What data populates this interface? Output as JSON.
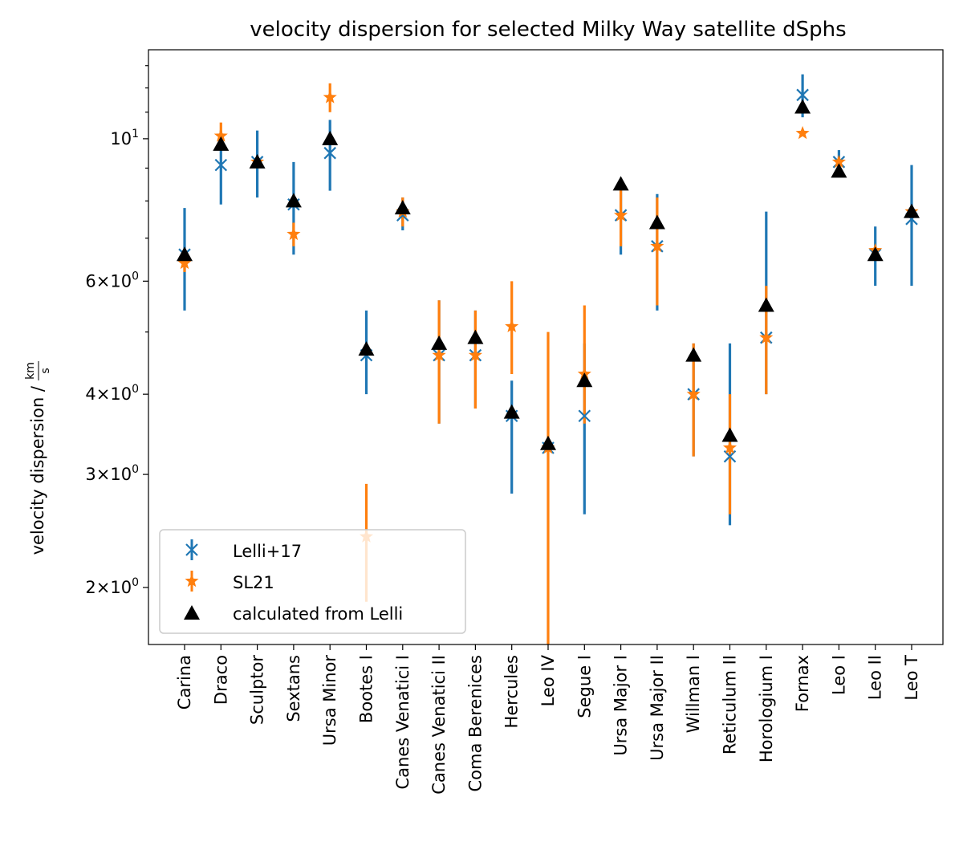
{
  "chart_data": {
    "type": "scatter",
    "title": "velocity dispersion for selected Milky Way satellite dSphs",
    "xlabel": "",
    "ylabel": "velocity dispersion / km/s",
    "ylabel_prefix": "velocity dispersion /",
    "ylabel_unit_num": "km",
    "ylabel_unit_den": "s",
    "yscale": "log",
    "ylim": [
      1.63,
      13.76
    ],
    "yticks": [
      {
        "value": 2,
        "mantissa": "2",
        "base": "10",
        "exp": "0"
      },
      {
        "value": 3,
        "mantissa": "3",
        "base": "10",
        "exp": "0"
      },
      {
        "value": 4,
        "mantissa": "4",
        "base": "10",
        "exp": "0"
      },
      {
        "value": 6,
        "mantissa": "6",
        "base": "10",
        "exp": "0"
      },
      {
        "value": 10,
        "mantissa": "",
        "base": "10",
        "exp": "1"
      }
    ],
    "categories": [
      "Carina",
      "Draco",
      "Sculptor",
      "Sextans",
      "Ursa Minor",
      "Bootes I",
      "Canes Venatici I",
      "Canes Venatici II",
      "Coma Berenices",
      "Hercules",
      "Leo IV",
      "Segue I",
      "Ursa Major I",
      "Ursa Major II",
      "Willman I",
      "Reticulum II",
      "Horologium I",
      "Fornax",
      "Leo I",
      "Leo II",
      "Leo T"
    ],
    "series": [
      {
        "name": "Lelli+17",
        "color": "#1f77b4",
        "marker": "x",
        "values": [
          6.6,
          9.1,
          9.2,
          7.9,
          9.5,
          4.6,
          7.6,
          4.6,
          4.6,
          3.7,
          3.3,
          3.7,
          7.6,
          6.8,
          4.0,
          3.2,
          4.9,
          11.7,
          9.2,
          6.6,
          7.5
        ],
        "err_low": [
          1.2,
          1.2,
          1.1,
          1.3,
          1.2,
          0.6,
          0.4,
          1.0,
          0.8,
          0.9,
          0.0,
          1.1,
          1.0,
          1.4,
          0.8,
          0.7,
          0.9,
          0.9,
          0.4,
          0.7,
          1.6
        ],
        "err_high": [
          1.2,
          1.2,
          1.1,
          1.3,
          1.2,
          0.8,
          0.5,
          1.0,
          0.8,
          0.5,
          0.0,
          1.1,
          1.0,
          1.4,
          0.8,
          1.6,
          2.8,
          0.9,
          0.4,
          0.7,
          1.6
        ]
      },
      {
        "name": "SL21",
        "color": "#ff7f0e",
        "marker": "*",
        "values": [
          6.4,
          10.1,
          9.2,
          7.1,
          11.6,
          2.4,
          7.7,
          4.6,
          4.6,
          5.1,
          3.3,
          4.3,
          7.6,
          6.8,
          4.0,
          3.3,
          4.9,
          10.2,
          9.2,
          6.7,
          7.7
        ],
        "err_low": [
          0.2,
          0.3,
          0.2,
          0.3,
          0.6,
          0.5,
          0.4,
          1.0,
          0.8,
          0.8,
          1.7,
          0.7,
          0.8,
          1.3,
          0.8,
          0.7,
          0.9,
          0.1,
          0.1,
          0.1,
          0.1
        ],
        "err_high": [
          0.2,
          0.5,
          0.2,
          0.3,
          0.6,
          0.5,
          0.4,
          1.0,
          0.8,
          0.9,
          1.7,
          1.2,
          0.8,
          1.3,
          0.8,
          0.7,
          1.0,
          0.1,
          0.1,
          0.1,
          0.1
        ]
      },
      {
        "name": "calculated from Lelli",
        "color": "#000000",
        "marker": "triangle",
        "values": [
          6.6,
          9.8,
          9.2,
          8.0,
          10.0,
          4.7,
          7.8,
          4.8,
          4.9,
          3.75,
          3.35,
          4.2,
          8.5,
          7.4,
          4.6,
          3.45,
          5.5,
          11.2,
          8.9,
          6.6,
          7.7
        ]
      }
    ],
    "legend": {
      "placement": "lower-left",
      "entries": [
        "Lelli+17",
        "SL21",
        "calculated from Lelli"
      ]
    }
  }
}
